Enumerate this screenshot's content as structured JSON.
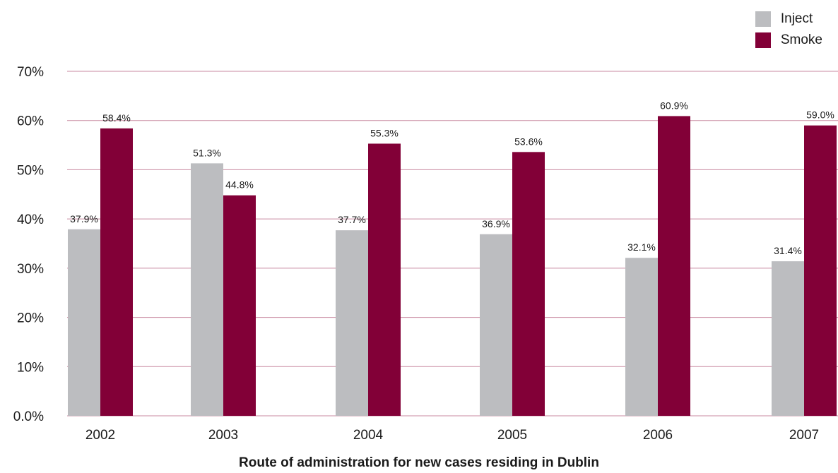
{
  "chart_data": {
    "type": "bar",
    "title": "",
    "xlabel": "Route of administration for new cases residing in Dublin",
    "ylabel": "",
    "categories": [
      "2002",
      "2003",
      "2004",
      "2005",
      "2006",
      "2007"
    ],
    "series": [
      {
        "name": "Inject",
        "color": "#bcbdc0",
        "values": [
          37.9,
          51.3,
          37.7,
          36.9,
          32.1,
          31.4
        ],
        "labels": [
          "37.9%",
          "51.3%",
          "37.7%",
          "36.9%",
          "32.1%",
          "31.4%"
        ]
      },
      {
        "name": "Smoke",
        "color": "#820037",
        "values": [
          58.4,
          44.8,
          55.3,
          53.6,
          60.9,
          59.0
        ],
        "labels": [
          "58.4%",
          "44.8%",
          "55.3%",
          "53.6%",
          "60.9%",
          "59.0%"
        ]
      }
    ],
    "ylim": [
      0,
      70
    ],
    "yticks": [
      0,
      10,
      20,
      30,
      40,
      50,
      60,
      70
    ],
    "ytick_labels": [
      "0.0%",
      "10%",
      "20%",
      "30%",
      "40%",
      "50%",
      "60%",
      "70%"
    ],
    "grid": true,
    "gridline_color": "#c98aa0",
    "legend_position": "top-right"
  }
}
